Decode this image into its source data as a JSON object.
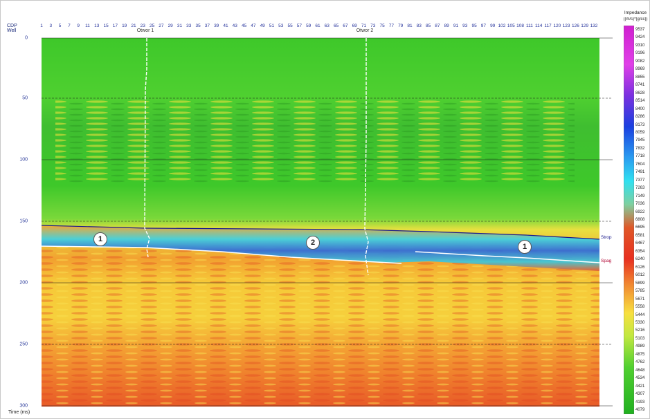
{
  "header": {
    "cdp_label": "CDP",
    "well_label": "Well"
  },
  "cdp_numbers": [
    "1",
    "3",
    "5",
    "7",
    "9",
    "11",
    "13",
    "15",
    "17",
    "19",
    "21",
    "23",
    "25",
    "27",
    "29",
    "31",
    "33",
    "35",
    "37",
    "39",
    "41",
    "43",
    "45",
    "47",
    "49",
    "51",
    "53",
    "55",
    "57",
    "59",
    "61",
    "63",
    "65",
    "67",
    "69",
    "71",
    "73",
    "75",
    "77",
    "79",
    "81",
    "83",
    "85",
    "87",
    "89",
    "91",
    "93",
    "95",
    "97",
    "99",
    "102",
    "105",
    "108",
    "111",
    "114",
    "117",
    "120",
    "123",
    "126",
    "129",
    "132"
  ],
  "wells": [
    {
      "name": "Otwor 1"
    },
    {
      "name": "Otwor 2"
    }
  ],
  "time_axis": {
    "label": "Time (ms)",
    "ticks": [
      "0",
      "50",
      "100",
      "150",
      "200",
      "250",
      "300"
    ]
  },
  "horizons": [
    {
      "name": "Strop",
      "color": "#1a1a8c"
    },
    {
      "name": "Spag",
      "color": "#c01040"
    }
  ],
  "zone_labels": [
    "1",
    "2",
    "1"
  ],
  "colorbar": {
    "title": "Impedance",
    "unit": "((m/s)*(g/cc))",
    "values": [
      "9537",
      "9424",
      "9310",
      "9196",
      "9082",
      "8969",
      "8855",
      "8741",
      "8628",
      "8514",
      "8400",
      "8286",
      "8173",
      "8059",
      "7945",
      "7832",
      "7718",
      "7604",
      "7491",
      "7377",
      "7263",
      "7149",
      "7036",
      "6922",
      "6808",
      "6695",
      "6581",
      "6467",
      "6354",
      "6240",
      "6126",
      "6012",
      "5899",
      "5785",
      "5671",
      "5558",
      "5444",
      "5330",
      "5216",
      "5103",
      "4989",
      "4875",
      "4762",
      "4648",
      "4534",
      "4421",
      "4307",
      "4193",
      "4079"
    ]
  },
  "colors": {
    "background_green": "#3ec82a",
    "grid_line": "#1a1a1a",
    "axis_text": "#22309a"
  }
}
